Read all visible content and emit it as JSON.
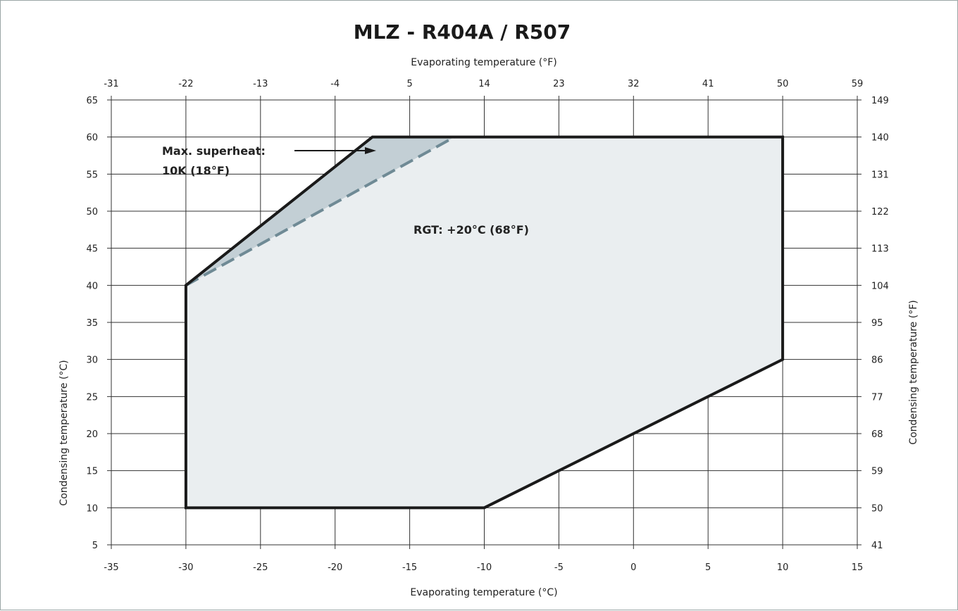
{
  "chart_data": {
    "type": "area",
    "title": "MLZ - R404A / R507",
    "x_bottom": {
      "label": "Evaporating temperature (°C)",
      "range": [
        -35,
        15
      ],
      "ticks": [
        -35,
        -30,
        -25,
        -20,
        -15,
        -10,
        -5,
        0,
        5,
        10,
        15
      ]
    },
    "x_top": {
      "label": "Evaporating temperature (°F)",
      "ticks": [
        "-31",
        "-22",
        "-13",
        "-4",
        "5",
        "14",
        "23",
        "32",
        "41",
        "50",
        "59"
      ]
    },
    "y_left": {
      "label": "Condensing temperature (°C)",
      "range": [
        5,
        65
      ],
      "ticks": [
        5,
        10,
        15,
        20,
        25,
        30,
        35,
        40,
        45,
        50,
        55,
        60,
        65
      ]
    },
    "y_right": {
      "label": "Condensing temperature (°F)",
      "ticks": [
        "41",
        "50",
        "59",
        "68",
        "77",
        "86",
        "95",
        "104",
        "113",
        "122",
        "131",
        "140",
        "149"
      ]
    },
    "grid": true,
    "envelope": {
      "points": [
        [
          -30,
          10
        ],
        [
          -10,
          10
        ],
        [
          10,
          30
        ],
        [
          10,
          60
        ],
        [
          -17.5,
          60
        ],
        [
          -30,
          40
        ]
      ]
    },
    "superheat_zone": {
      "dashed_limit": [
        [
          -30,
          40
        ],
        [
          -21,
          50
        ],
        [
          -12,
          60
        ]
      ]
    },
    "annotations": {
      "superheat_line1": "Max. superheat:",
      "superheat_line2": "10K (18°F)",
      "rgt": "RGT: +20°C (68°F)"
    },
    "colors": {
      "envelope_fill": "#eaeef0",
      "superheat_fill": "#bfcbd2",
      "dashed_line": "#6f8a95",
      "outline": "#1a1a1a",
      "grid": "#333333"
    }
  }
}
